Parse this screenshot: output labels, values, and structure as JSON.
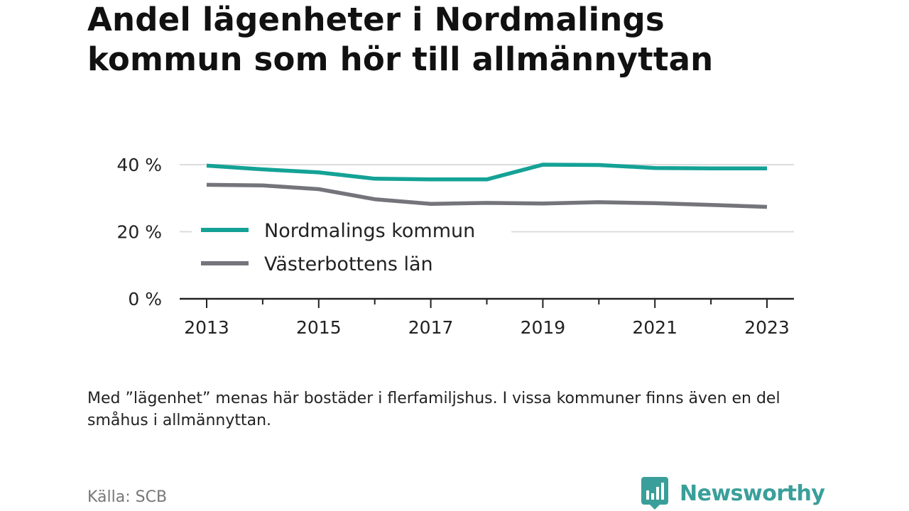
{
  "title": "Andel lägenheter i Nordmalings kommun som hör till allmännyttan",
  "note": "Med ”lägenhet” menas här bostäder i flerfamiljshus. I vissa kommuner finns även en del småhus i allmännyttan.",
  "source": "Källa: SCB",
  "brand": {
    "name": "Newsworthy",
    "icon": "newsworthy-logo-icon",
    "color": "#3a9f9a"
  },
  "chart_data": {
    "type": "line",
    "x": [
      2013,
      2014,
      2015,
      2016,
      2017,
      2018,
      2019,
      2020,
      2021,
      2022,
      2023
    ],
    "x_tick_labels": [
      "2013",
      "2015",
      "2017",
      "2019",
      "2021",
      "2023"
    ],
    "y_tick_values": [
      0,
      20,
      40
    ],
    "y_tick_labels": [
      "0 %",
      "20 %",
      "40 %"
    ],
    "ylim": [
      0,
      40
    ],
    "grid": true,
    "legend_position": "inside, center-left",
    "series": [
      {
        "name": "Nordmalings kommun",
        "color": "#14a296",
        "values": [
          39.7,
          38.6,
          37.7,
          35.8,
          35.6,
          35.6,
          40.0,
          39.9,
          39.0,
          38.9,
          38.9
        ]
      },
      {
        "name": "Västerbottens län",
        "color": "#74747b",
        "values": [
          34.0,
          33.8,
          32.7,
          29.7,
          28.3,
          28.6,
          28.4,
          28.8,
          28.5,
          28.0,
          27.4
        ]
      }
    ]
  }
}
